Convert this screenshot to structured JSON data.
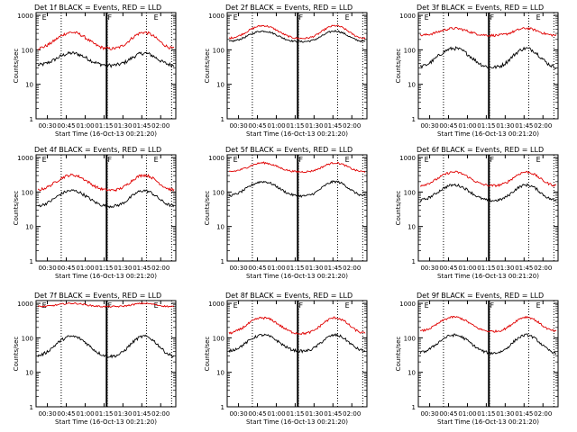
{
  "page": {
    "xlabel": "Start Time (16-Oct-13 00:21:20)",
    "ylabel": "Counts/sec",
    "colors": {
      "events": "#000000",
      "lld": "#e00000",
      "frame": "#000000"
    }
  },
  "chart_data": [
    {
      "type": "line",
      "title": "Det 1f BLACK = Events, RED = LLD",
      "scale": "log",
      "x_ticks": [
        "00:30",
        "00:45",
        "01:00",
        "01:15",
        "01:30",
        "01:45",
        "02:00"
      ],
      "y_ticks": [
        "1",
        "10",
        "100",
        "1000"
      ],
      "ylim": [
        1,
        1200
      ],
      "markers": [
        "E",
        "F",
        "E"
      ],
      "series": [
        {
          "name": "Events",
          "baseline": 35,
          "peak": 80,
          "noise": 0.12
        },
        {
          "name": "LLD",
          "baseline": 105,
          "peak": 320,
          "noise": 0.1
        }
      ]
    },
    {
      "type": "line",
      "title": "Det 2f BLACK = Events, RED = LLD",
      "scale": "log",
      "x_ticks": [
        "00:30",
        "00:45",
        "01:00",
        "01:15",
        "01:30",
        "01:45",
        "02:00"
      ],
      "y_ticks": [
        "1",
        "10",
        "100",
        "1000"
      ],
      "ylim": [
        1,
        1200
      ],
      "markers": [
        "E",
        "F",
        "E"
      ],
      "series": [
        {
          "name": "Events",
          "baseline": 170,
          "peak": 350,
          "noise": 0.06
        },
        {
          "name": "LLD",
          "baseline": 210,
          "peak": 500,
          "noise": 0.06
        }
      ]
    },
    {
      "type": "line",
      "title": "Det 3f BLACK = Events, RED = LLD",
      "scale": "log",
      "x_ticks": [
        "00:30",
        "00:45",
        "01:00",
        "01:15",
        "01:30",
        "01:45",
        "02:00"
      ],
      "y_ticks": [
        "1",
        "10",
        "100",
        "1000"
      ],
      "ylim": [
        1,
        1200
      ],
      "markers": [
        "E",
        "F",
        "E"
      ],
      "series": [
        {
          "name": "Events",
          "baseline": 30,
          "peak": 110,
          "noise": 0.12
        },
        {
          "name": "LLD",
          "baseline": 260,
          "peak": 420,
          "noise": 0.08
        }
      ]
    },
    {
      "type": "line",
      "title": "Det 4f BLACK = Events, RED = LLD",
      "scale": "log",
      "x_ticks": [
        "00:30",
        "00:45",
        "01:00",
        "01:15",
        "01:30",
        "01:45",
        "02:00"
      ],
      "y_ticks": [
        "1",
        "10",
        "100",
        "1000"
      ],
      "ylim": [
        1,
        1200
      ],
      "markers": [
        "E",
        "F",
        "E"
      ],
      "series": [
        {
          "name": "Events",
          "baseline": 38,
          "peak": 110,
          "noise": 0.1
        },
        {
          "name": "LLD",
          "baseline": 110,
          "peak": 310,
          "noise": 0.09
        }
      ]
    },
    {
      "type": "line",
      "title": "Det 5f BLACK = Events, RED = LLD",
      "scale": "log",
      "x_ticks": [
        "00:30",
        "00:45",
        "01:00",
        "01:15",
        "01:30",
        "01:45",
        "02:00"
      ],
      "y_ticks": [
        "1",
        "10",
        "100",
        "1000"
      ],
      "ylim": [
        1,
        1200
      ],
      "markers": [
        "E",
        "F",
        "E"
      ],
      "series": [
        {
          "name": "Events",
          "baseline": 75,
          "peak": 200,
          "noise": 0.08
        },
        {
          "name": "LLD",
          "baseline": 380,
          "peak": 700,
          "noise": 0.06
        }
      ]
    },
    {
      "type": "line",
      "title": "Det 6f BLACK = Events, RED = LLD",
      "scale": "log",
      "x_ticks": [
        "00:30",
        "00:45",
        "01:00",
        "01:15",
        "01:30",
        "01:45",
        "02:00"
      ],
      "y_ticks": [
        "1",
        "10",
        "100",
        "1000"
      ],
      "ylim": [
        1,
        1200
      ],
      "markers": [
        "E",
        "F",
        "E"
      ],
      "series": [
        {
          "name": "Events",
          "baseline": 55,
          "peak": 160,
          "noise": 0.09
        },
        {
          "name": "LLD",
          "baseline": 150,
          "peak": 380,
          "noise": 0.08
        }
      ]
    },
    {
      "type": "line",
      "title": "Det 7f BLACK = Events, RED = LLD",
      "scale": "log",
      "x_ticks": [
        "00:30",
        "00:45",
        "01:00",
        "01:15",
        "01:30",
        "01:45",
        "02:00"
      ],
      "y_ticks": [
        "1",
        "10",
        "100",
        "1000"
      ],
      "ylim": [
        1,
        1200
      ],
      "markers": [
        "E",
        "F",
        "E"
      ],
      "series": [
        {
          "name": "Events",
          "baseline": 28,
          "peak": 110,
          "noise": 0.1
        },
        {
          "name": "LLD",
          "baseline": 800,
          "peak": 1000,
          "noise": 0.05
        }
      ]
    },
    {
      "type": "line",
      "title": "Det 8f BLACK = Events, RED = LLD",
      "scale": "log",
      "x_ticks": [
        "00:30",
        "00:45",
        "01:00",
        "01:15",
        "01:30",
        "01:45",
        "02:00"
      ],
      "y_ticks": [
        "1",
        "10",
        "100",
        "1000"
      ],
      "ylim": [
        1,
        1200
      ],
      "markers": [
        "E",
        "F",
        "E"
      ],
      "series": [
        {
          "name": "Events",
          "baseline": 40,
          "peak": 120,
          "noise": 0.09
        },
        {
          "name": "LLD",
          "baseline": 130,
          "peak": 380,
          "noise": 0.08
        }
      ]
    },
    {
      "type": "line",
      "title": "Det 9f BLACK = Events, RED = LLD",
      "scale": "log",
      "x_ticks": [
        "00:30",
        "00:45",
        "01:00",
        "01:15",
        "01:30",
        "01:45",
        "02:00"
      ],
      "y_ticks": [
        "1",
        "10",
        "100",
        "1000"
      ],
      "ylim": [
        1,
        1200
      ],
      "markers": [
        "E",
        "F",
        "E"
      ],
      "series": [
        {
          "name": "Events",
          "baseline": 35,
          "peak": 120,
          "noise": 0.09
        },
        {
          "name": "LLD",
          "baseline": 150,
          "peak": 400,
          "noise": 0.07
        }
      ]
    }
  ]
}
